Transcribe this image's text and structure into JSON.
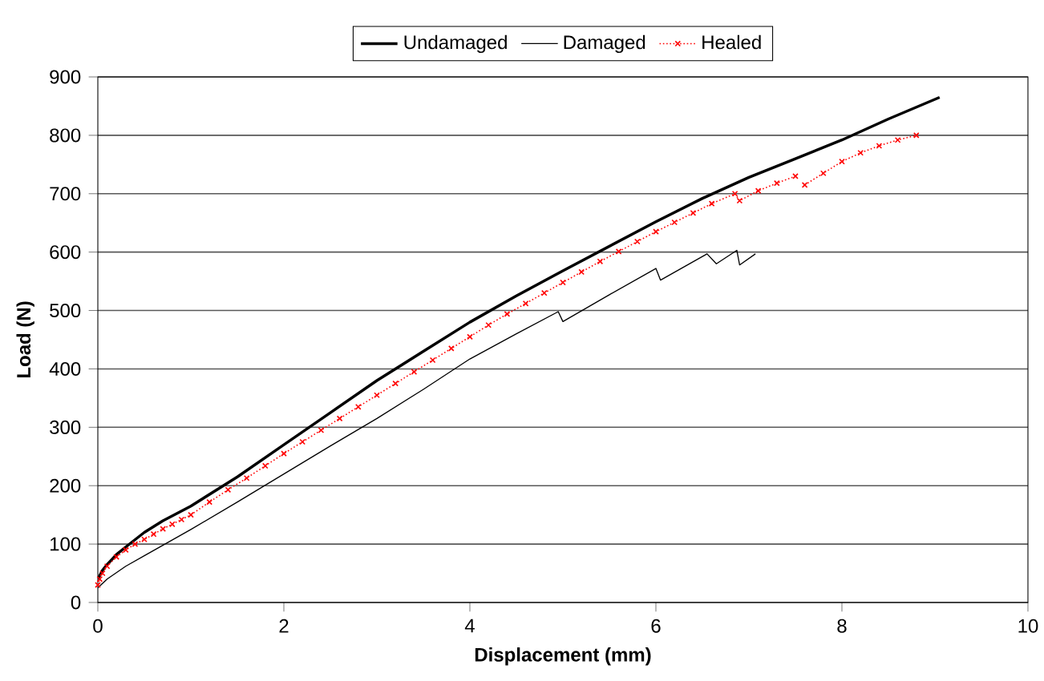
{
  "chart_data": {
    "type": "line",
    "xlabel": "Displacement (mm)",
    "ylabel": "Load (N)",
    "xlim": [
      0,
      10
    ],
    "ylim": [
      0,
      900
    ],
    "xticks": [
      0,
      2,
      4,
      6,
      8,
      10
    ],
    "yticks": [
      0,
      100,
      200,
      300,
      400,
      500,
      600,
      700,
      800,
      900
    ],
    "grid": "y",
    "legend": "top",
    "series": [
      {
        "name": "Undamaged",
        "color": "#000000",
        "line_style": "solid",
        "marker": "none",
        "x": [
          0,
          0.05,
          0.1,
          0.2,
          0.3,
          0.5,
          0.7,
          1,
          1.5,
          2,
          2.5,
          3,
          3.5,
          4,
          4.5,
          5,
          5.5,
          6,
          6.5,
          7,
          7.5,
          8,
          8.5,
          9.05
        ],
        "values": [
          40,
          55,
          65,
          82,
          95,
          120,
          140,
          165,
          215,
          270,
          325,
          380,
          430,
          480,
          525,
          568,
          610,
          652,
          692,
          728,
          760,
          792,
          828,
          865
        ]
      },
      {
        "name": "Damaged",
        "color": "#000000",
        "line_style": "solid",
        "marker": "none",
        "x": [
          0,
          0.1,
          0.3,
          0.5,
          1,
          1.5,
          2,
          2.5,
          3,
          3.5,
          4,
          4.5,
          4.95,
          5.0,
          5.5,
          6.0,
          6.05,
          6.55,
          6.65,
          6.87,
          6.9,
          7.07
        ],
        "values": [
          25,
          40,
          62,
          80,
          125,
          172,
          220,
          268,
          315,
          365,
          417,
          460,
          498,
          481,
          527,
          572,
          552,
          597,
          580,
          603,
          578,
          597
        ]
      },
      {
        "name": "Healed",
        "color": "#ff0000",
        "line_style": "dotted",
        "marker": "cross",
        "x": [
          0,
          0.02,
          0.05,
          0.1,
          0.2,
          0.3,
          0.4,
          0.5,
          0.6,
          0.7,
          0.8,
          0.9,
          1,
          1.2,
          1.4,
          1.6,
          1.8,
          2,
          2.2,
          2.4,
          2.6,
          2.8,
          3,
          3.2,
          3.4,
          3.6,
          3.8,
          4,
          4.2,
          4.4,
          4.6,
          4.8,
          5,
          5.2,
          5.4,
          5.6,
          5.8,
          6,
          6.2,
          6.4,
          6.6,
          6.85,
          6.9,
          7.1,
          7.3,
          7.5,
          7.55,
          7.6,
          7.8,
          8,
          8.2,
          8.4,
          8.6,
          8.8
        ],
        "values": [
          30,
          40,
          50,
          62,
          78,
          90,
          100,
          108,
          117,
          126,
          134,
          142,
          150,
          172,
          193,
          213,
          234,
          255,
          275,
          295,
          315,
          335,
          355,
          375,
          395,
          415,
          435,
          455,
          475,
          494,
          512,
          530,
          548,
          566,
          584,
          601,
          618,
          635,
          651,
          667,
          683,
          700,
          688,
          705,
          718,
          730,
          null,
          715,
          735,
          755,
          770,
          782,
          792,
          800
        ]
      }
    ]
  }
}
